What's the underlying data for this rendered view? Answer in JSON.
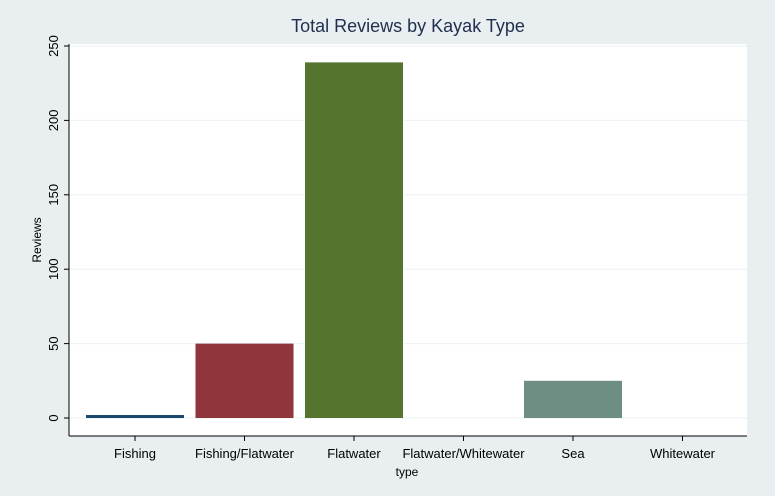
{
  "chart_data": {
    "type": "bar",
    "title": "Total Reviews by Kayak Type",
    "xlabel": "type",
    "ylabel": "Reviews",
    "categories": [
      "Fishing",
      "Fishing/Flatwater",
      "Flatwater",
      "Flatwater/Whitewater",
      "Sea",
      "Whitewater"
    ],
    "values": [
      2,
      50,
      239,
      0,
      25,
      0
    ],
    "colors": [
      "#1a476f",
      "#90353b",
      "#55752f",
      "#e37e00",
      "#6e8e84",
      "#c10534"
    ],
    "yticks": [
      0,
      50,
      100,
      150,
      200,
      250
    ],
    "ylim": [
      0,
      250
    ],
    "grid": true,
    "legend": "none"
  }
}
